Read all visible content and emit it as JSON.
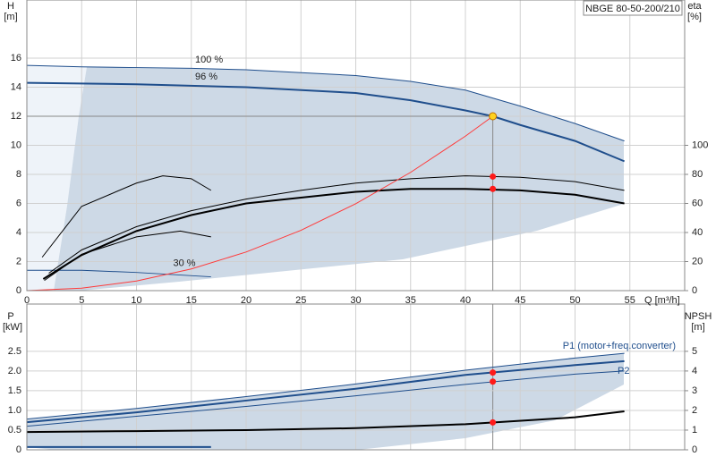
{
  "chart_data": [
    {
      "type": "line",
      "title": "NBGE 80-50-200/210",
      "y_label": "H",
      "y_unit": "[m]",
      "y2_label": "eta",
      "y2_unit": "[%]",
      "x_label": "Q [m³/h]",
      "xlim": [
        0,
        60
      ],
      "xticks": [
        0,
        5,
        10,
        15,
        20,
        25,
        30,
        35,
        40,
        45,
        50,
        55
      ],
      "ylim": [
        0,
        20
      ],
      "yticks": [
        0,
        2,
        4,
        6,
        8,
        10,
        12,
        14,
        16
      ],
      "y2lim": [
        0,
        200
      ],
      "y2ticks": [
        0,
        20,
        40,
        60,
        80,
        100
      ],
      "grid": true,
      "series": [
        {
          "name": "100 %",
          "color": "#1f4e8c",
          "x": [
            0,
            5,
            10,
            15,
            20,
            25,
            30,
            35,
            40,
            45,
            50,
            54.5
          ],
          "values": [
            15.5,
            15.4,
            15.35,
            15.3,
            15.2,
            15.0,
            14.8,
            14.4,
            13.8,
            12.7,
            11.5,
            10.3
          ]
        },
        {
          "name": "96 %",
          "color": "#1f4e8c",
          "x": [
            0,
            10,
            20,
            30,
            35,
            40,
            42.5,
            45,
            50,
            54.5
          ],
          "values": [
            14.3,
            14.2,
            14.0,
            13.6,
            13.1,
            12.4,
            12.0,
            11.4,
            10.3,
            8.9
          ]
        },
        {
          "name": "30 %",
          "color": "#1f4e8c",
          "x": [
            0,
            5,
            10,
            16.8
          ],
          "values": [
            1.4,
            1.4,
            1.25,
            0.95
          ]
        },
        {
          "color": "#000000",
          "axis": "y2",
          "x": [
            2,
            5,
            10,
            15,
            20,
            25,
            30,
            35,
            40,
            45,
            50,
            54.5
          ],
          "values": [
            12,
            28,
            44,
            55,
            63,
            69,
            74,
            77,
            79,
            78,
            75,
            69
          ]
        },
        {
          "color": "#000000",
          "axis": "y2",
          "x": [
            1.5,
            5,
            10,
            15,
            20,
            25,
            30,
            35,
            40,
            45,
            50,
            54.5
          ],
          "values": [
            8,
            24.5,
            41,
            52,
            60,
            64,
            68,
            70,
            70,
            69,
            66,
            60
          ]
        },
        {
          "color": "#000000",
          "axis": "y2",
          "x": [
            1.4,
            5,
            10,
            12.4,
            15,
            16.8
          ],
          "values": [
            23,
            58,
            74,
            79,
            77,
            69
          ]
        },
        {
          "color": "#000000",
          "axis": "y2",
          "x": [
            1.6,
            5,
            10,
            14,
            16.8
          ],
          "values": [
            7,
            25,
            37,
            41,
            37
          ]
        },
        {
          "color": "#ff3b3b",
          "x": [
            0,
            5,
            10,
            15,
            20,
            25,
            30,
            35,
            40,
            42.5
          ],
          "values": [
            0,
            0.166,
            0.664,
            1.495,
            2.657,
            4.152,
            5.979,
            8.138,
            10.63,
            12.0
          ]
        }
      ],
      "points": [
        {
          "x": 42.5,
          "value": 12,
          "color": "#ffd21f"
        },
        {
          "x": 42.5,
          "value": 78.5,
          "axis": "y2",
          "color": "#ff1a1a"
        },
        {
          "x": 42.5,
          "value": 70,
          "axis": "y2",
          "color": "#ff1a1a"
        }
      ]
    },
    {
      "type": "line",
      "y_label": "P",
      "y_unit": "[kW]",
      "y2_label": "NPSH",
      "y2_unit": "[m]",
      "xlim": [
        0,
        60
      ],
      "ylim": [
        0,
        3.7
      ],
      "yticks": [
        0,
        0.5,
        {
          "value": 1.0,
          "label": "1.0"
        },
        1.5,
        {
          "value": 2.0,
          "label": "2.0"
        },
        2.5
      ],
      "y2lim": [
        0,
        7.4
      ],
      "y2ticks": [
        0,
        1,
        2,
        3,
        4,
        5
      ],
      "grid": true,
      "series": [
        {
          "name": "P1 (motor+freq.converter)",
          "color": "#1f4e8c",
          "x": [
            0,
            10,
            20,
            30,
            40,
            50,
            54.5
          ],
          "values": [
            0.78,
            1.05,
            1.35,
            1.67,
            2.02,
            2.33,
            2.45
          ]
        },
        {
          "color": "#1f4e8c",
          "x": [
            0,
            10,
            20,
            30,
            40,
            50,
            54.5
          ],
          "values": [
            0.7,
            0.95,
            1.25,
            1.55,
            1.9,
            2.15,
            2.25
          ]
        },
        {
          "name": "P2",
          "color": "#1f4e8c",
          "x": [
            0,
            10,
            20,
            30,
            40,
            50,
            54.5
          ],
          "values": [
            0.6,
            0.85,
            1.1,
            1.37,
            1.66,
            1.92,
            2.0
          ]
        },
        {
          "color": "#1f4e8c",
          "x": [
            0,
            16.8
          ],
          "values": [
            0.07,
            0.07
          ]
        },
        {
          "color": "#000000",
          "axis": "y2",
          "x": [
            0,
            10,
            20,
            30,
            40,
            50,
            54.5
          ],
          "values": [
            0.9,
            0.95,
            1.0,
            1.1,
            1.3,
            1.65,
            1.95
          ]
        }
      ],
      "points": [
        {
          "x": 42.5,
          "value": 1.96,
          "color": "#ff1a1a"
        },
        {
          "x": 42.5,
          "value": 1.73,
          "color": "#ff1a1a"
        },
        {
          "x": 42.5,
          "value": 1.39,
          "axis": "y2",
          "color": "#ff1a1a"
        }
      ]
    }
  ]
}
